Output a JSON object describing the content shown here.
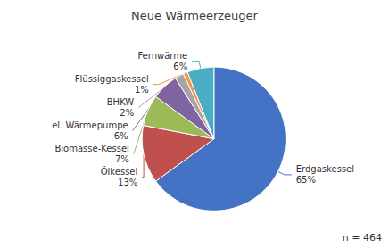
{
  "chart_data": {
    "type": "pie",
    "title": "Neue Wärmeerzeuger",
    "categories": [
      "Erdgaskessel",
      "Ölkessel",
      "Biomasse-Kessel",
      "el. Wärmepumpe",
      "BHKW",
      "Flüssiggaskessel",
      "Fernwärme"
    ],
    "values": [
      65,
      13,
      7,
      6,
      2,
      1,
      6
    ],
    "value_labels": [
      "65%",
      "13%",
      "7%",
      "6%",
      "2%",
      "1%",
      "6%"
    ],
    "colors": [
      "#4472C4",
      "#C0504D",
      "#9BBB59",
      "#8064A2",
      "#A5A5A5",
      "#F79646",
      "#4BACC6"
    ],
    "data_labels": true,
    "annotations": [
      "n = 464"
    ]
  }
}
